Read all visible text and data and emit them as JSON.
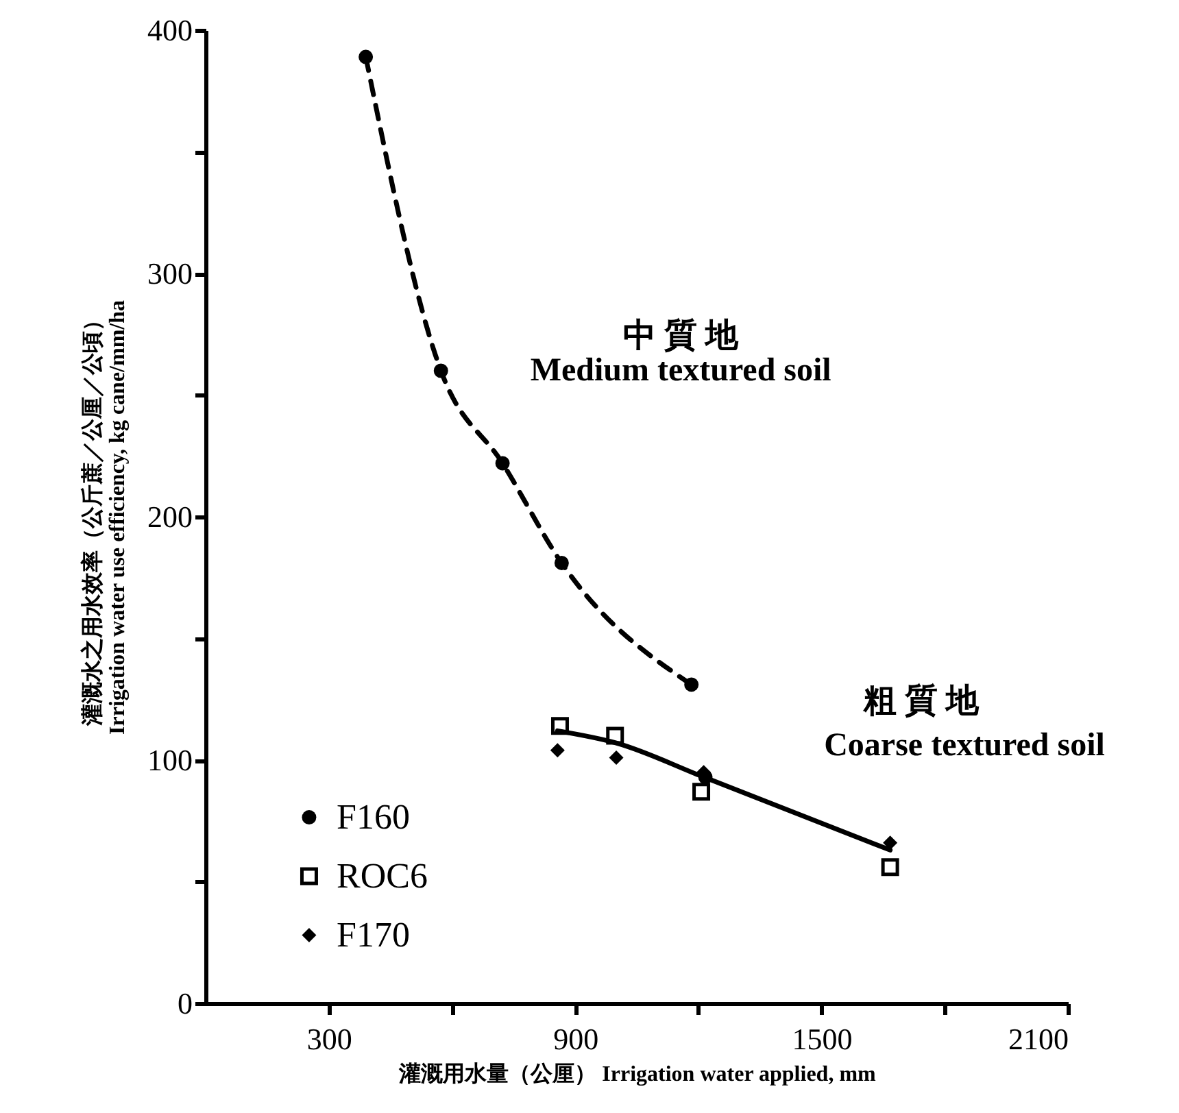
{
  "chart_data": {
    "type": "scatter",
    "xlabel": "灌溉用水量（公厘） Irrigation water applied, mm",
    "ylabel": "灌溉水之用水效率（公斤蔗／公厘／公頃）\nIrrigation water use efficiency, kg cane/mm/ha",
    "xlim": [
      0,
      2100
    ],
    "ylim": [
      0,
      400
    ],
    "xticks": [
      300,
      {
        "value": 600,
        "label": null
      },
      900,
      {
        "value": 1200,
        "label": null
      },
      1500,
      {
        "value": 1800,
        "label": null
      },
      2100
    ],
    "yticks": [
      0,
      {
        "value": 50,
        "label": null
      },
      100,
      {
        "value": 150,
        "label": null
      },
      200,
      {
        "value": 250,
        "label": null
      },
      300,
      {
        "value": 350,
        "label": null
      },
      400
    ],
    "grid": false,
    "legend": "bottom left",
    "series": [
      {
        "type": "line",
        "color": "#000000",
        "line_style": "dashed",
        "marker": "none",
        "x": [
          390,
          573,
          723,
          867,
          1183
        ],
        "values": [
          389,
          260,
          222,
          181,
          131
        ]
      },
      {
        "type": "line",
        "color": "#000000",
        "line_style": "solid",
        "marker": "none",
        "x": [
          857,
          1000,
          1213,
          1667
        ],
        "values": [
          112,
          107,
          93,
          63
        ]
      },
      {
        "name": "F160",
        "color": "#000000",
        "marker": "circle",
        "x": [
          390,
          573,
          723,
          867,
          1183,
          1217
        ],
        "values": [
          389,
          260,
          222,
          181,
          131,
          93
        ]
      },
      {
        "name": "ROC6",
        "color": "#000000",
        "marker": "square",
        "x": [
          863,
          997,
          1207,
          1667
        ],
        "values": [
          114,
          110,
          87,
          56
        ]
      },
      {
        "name": "F170",
        "color": "#000000",
        "marker": "diamond",
        "x": [
          857,
          1000,
          1213,
          1667
        ],
        "values": [
          104,
          101,
          95,
          66
        ]
      }
    ],
    "annotations": [
      "中 質 地",
      "Medium textured soil",
      "粗 質 地",
      "Coarse textured soil"
    ]
  }
}
